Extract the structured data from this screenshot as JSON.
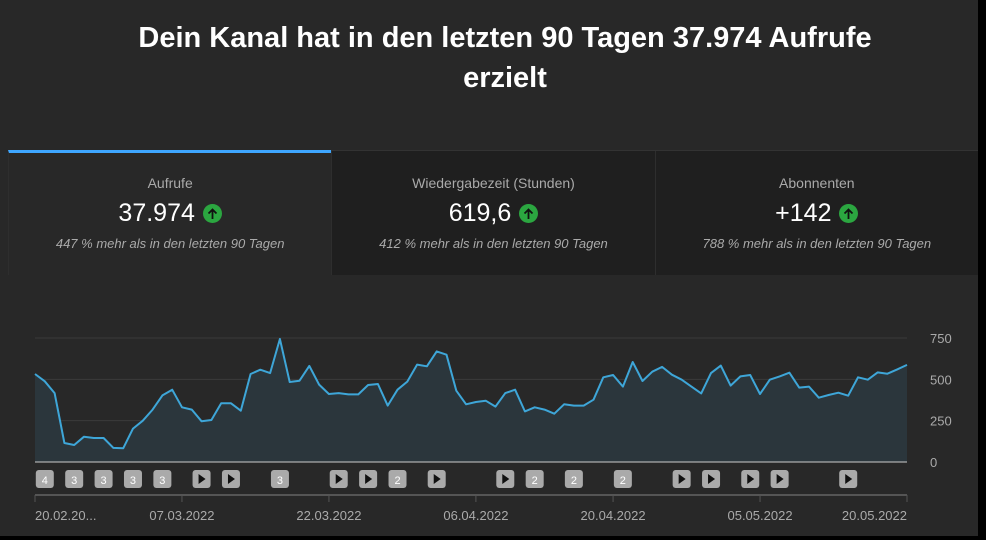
{
  "header": {
    "title_line1": "Dein Kanal hat in den letzten 90 Tagen 37.974 Aufrufe",
    "title_line2": "erzielt"
  },
  "tabs": [
    {
      "label": "Aufrufe",
      "value": "37.974",
      "trend_icon": "arrow-up-icon",
      "sub": "447 % mehr als in den letzten 90 Tagen",
      "active": true
    },
    {
      "label": "Wiedergabezeit (Stunden)",
      "value": "619,6",
      "trend_icon": "arrow-up-icon",
      "sub": "412 % mehr als in den letzten 90 Tagen",
      "active": false
    },
    {
      "label": "Abonnenten",
      "value": "+142",
      "trend_icon": "arrow-up-icon",
      "sub": "788 % mehr als in den letzten 90 Tagen",
      "active": false
    }
  ],
  "colors": {
    "line": "#3ea6d8",
    "fill": "#2b363c",
    "accent": "#3ea6ff",
    "up": "#2ba640"
  },
  "chart_data": {
    "type": "area",
    "ylabel": "Aufrufe",
    "ylim": [
      0,
      750
    ],
    "yticks": [
      "0",
      "250",
      "500",
      "750"
    ],
    "ytick_values": [
      0,
      250,
      500,
      750
    ],
    "xtick_labels": [
      "20.02.20...",
      "07.03.2022",
      "22.03.2022",
      "06.04.2022",
      "20.04.2022",
      "05.05.2022",
      "20.05.2022"
    ],
    "xtick_days": [
      0,
      15,
      30,
      45,
      59,
      74,
      89
    ],
    "values": [
      532,
      488,
      417,
      115,
      103,
      153,
      145,
      145,
      85,
      83,
      202,
      250,
      317,
      403,
      437,
      331,
      317,
      246,
      254,
      355,
      355,
      310,
      532,
      558,
      538,
      744,
      484,
      492,
      581,
      468,
      411,
      417,
      409,
      409,
      466,
      472,
      341,
      437,
      486,
      589,
      579,
      669,
      649,
      431,
      349,
      363,
      371,
      335,
      417,
      437,
      306,
      331,
      317,
      292,
      349,
      341,
      341,
      377,
      512,
      526,
      456,
      605,
      490,
      546,
      575,
      528,
      498,
      456,
      415,
      538,
      583,
      462,
      518,
      526,
      411,
      498,
      518,
      540,
      450,
      456,
      389,
      405,
      419,
      401,
      512,
      498,
      542,
      534,
      560,
      587
    ],
    "markers": [
      {
        "day": 1,
        "label": "4"
      },
      {
        "day": 4,
        "label": "3"
      },
      {
        "day": 7,
        "label": "3"
      },
      {
        "day": 10,
        "label": "3"
      },
      {
        "day": 13,
        "label": "3"
      },
      {
        "day": 17,
        "label": ""
      },
      {
        "day": 20,
        "label": ""
      },
      {
        "day": 25,
        "label": "3"
      },
      {
        "day": 31,
        "label": ""
      },
      {
        "day": 34,
        "label": ""
      },
      {
        "day": 37,
        "label": "2"
      },
      {
        "day": 41,
        "label": ""
      },
      {
        "day": 48,
        "label": ""
      },
      {
        "day": 51,
        "label": "2"
      },
      {
        "day": 55,
        "label": "2"
      },
      {
        "day": 60,
        "label": "2"
      },
      {
        "day": 66,
        "label": ""
      },
      {
        "day": 69,
        "label": ""
      },
      {
        "day": 73,
        "label": ""
      },
      {
        "day": 76,
        "label": ""
      },
      {
        "day": 83,
        "label": ""
      }
    ]
  }
}
